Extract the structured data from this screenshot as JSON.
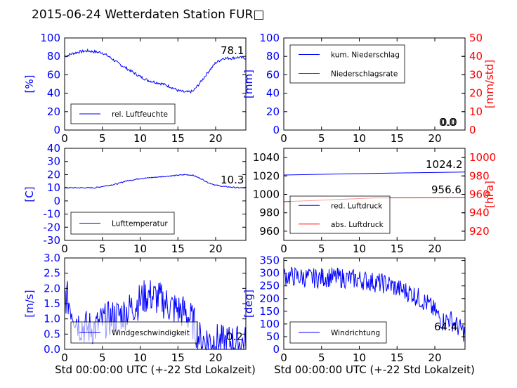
{
  "figure": {
    "title": "2015-06-24 Wetterdaten Station FUR□"
  },
  "colors": {
    "blue": "#0000ff",
    "red": "#ff0000",
    "light_blue": "#9999ff"
  },
  "chart_data": [
    {
      "id": "humidity",
      "type": "line",
      "xlim": [
        0,
        24
      ],
      "xticks": [
        0,
        5,
        10,
        15,
        20
      ],
      "ylim": [
        0,
        100
      ],
      "yticks": [
        0,
        20,
        40,
        60,
        80,
        100
      ],
      "ylabel": "[%]",
      "legend": {
        "placement": "lower-left",
        "entries": [
          {
            "label": "rel. Luftfeuchte",
            "color": "#0000ff"
          }
        ]
      },
      "annotations": [
        "78.1"
      ],
      "series": [
        {
          "name": "rel. Luftfeuchte",
          "axis": "left",
          "color": "#0000ff",
          "noise": 1.5,
          "points": [
            [
              0,
              80
            ],
            [
              1,
              83
            ],
            [
              2,
              85
            ],
            [
              3,
              86
            ],
            [
              4,
              85
            ],
            [
              5,
              84
            ],
            [
              6,
              79
            ],
            [
              7,
              73
            ],
            [
              8,
              68
            ],
            [
              9,
              63
            ],
            [
              10,
              58
            ],
            [
              11,
              54
            ],
            [
              12,
              52
            ],
            [
              13,
              50
            ],
            [
              14,
              47
            ],
            [
              15,
              43
            ],
            [
              16,
              41
            ],
            [
              17,
              42
            ],
            [
              18,
              52
            ],
            [
              19,
              63
            ],
            [
              20,
              73
            ],
            [
              21,
              78
            ],
            [
              22,
              78
            ],
            [
              23,
              79
            ],
            [
              24,
              78
            ]
          ]
        }
      ]
    },
    {
      "id": "precip",
      "type": "line",
      "xlim": [
        0,
        24
      ],
      "xticks": [
        0,
        5,
        10,
        15,
        20
      ],
      "ylim": [
        0,
        100
      ],
      "yticks": [
        0,
        20,
        40,
        60,
        80,
        100
      ],
      "ylabel": "[mm]",
      "ylim2": [
        0,
        50
      ],
      "yticks2": [
        0,
        10,
        20,
        30,
        40,
        50
      ],
      "ylabel2": "[mm/std]",
      "legend": {
        "placement": "upper-left",
        "entries": [
          {
            "label": "kum. Niederschlag",
            "color": "#0000ff"
          },
          {
            "label": "Niederschlagsrate",
            "color": "#ff0000"
          }
        ]
      },
      "annotations": [
        "0.0",
        "0.0"
      ],
      "series": [
        {
          "name": "kum. Niederschlag",
          "axis": "left",
          "color": "#0000ff",
          "noise": 0,
          "points": [
            [
              0,
              0
            ],
            [
              24,
              0
            ]
          ]
        },
        {
          "name": "Niederschlagsrate",
          "axis": "right",
          "color": "#ff0000",
          "noise": 0,
          "points": [
            [
              0,
              0
            ],
            [
              24,
              0
            ]
          ]
        }
      ]
    },
    {
      "id": "temp",
      "type": "line",
      "xlim": [
        0,
        24
      ],
      "xticks": [
        0,
        5,
        10,
        15,
        20
      ],
      "ylim": [
        -30,
        40
      ],
      "yticks": [
        -30,
        -20,
        -10,
        0,
        10,
        20,
        30,
        40
      ],
      "ylabel": "[C]",
      "legend": {
        "placement": "lower-left",
        "entries": [
          {
            "label": "Lufttemperatur",
            "color": "#0000ff"
          }
        ]
      },
      "annotations": [
        "10.3"
      ],
      "series": [
        {
          "name": "Lufttemperatur",
          "axis": "left",
          "color": "#0000ff",
          "noise": 0.4,
          "points": [
            [
              0,
              10
            ],
            [
              1,
              10
            ],
            [
              2,
              10
            ],
            [
              3,
              10
            ],
            [
              4,
              10
            ],
            [
              5,
              11
            ],
            [
              6,
              12
            ],
            [
              7,
              13
            ],
            [
              8,
              15
            ],
            [
              9,
              16
            ],
            [
              10,
              17
            ],
            [
              11,
              17.5
            ],
            [
              12,
              18
            ],
            [
              13,
              18.5
            ],
            [
              14,
              19
            ],
            [
              15,
              19.5
            ],
            [
              16,
              20
            ],
            [
              17,
              19.5
            ],
            [
              18,
              17
            ],
            [
              19,
              14
            ],
            [
              20,
              12
            ],
            [
              21,
              11
            ],
            [
              22,
              10.5
            ],
            [
              23,
              10
            ],
            [
              24,
              10
            ]
          ]
        }
      ]
    },
    {
      "id": "pressure",
      "type": "line",
      "xlim": [
        0,
        24
      ],
      "xticks": [
        0,
        5,
        10,
        15,
        20
      ],
      "ylim": [
        950,
        1050
      ],
      "yticks": [
        960,
        980,
        1000,
        1020,
        1040
      ],
      "ylabel2": "[hPa]",
      "ylim2": [
        910,
        1010
      ],
      "yticks2": [
        920,
        940,
        960,
        980,
        1000
      ],
      "legend": {
        "placement": "lower-left",
        "entries": [
          {
            "label": "red. Luftdruck",
            "color": "#0000ff"
          },
          {
            "label": "abs. Luftdruck",
            "color": "#ff0000"
          }
        ]
      },
      "annotations": [
        "1024.2",
        "956.6"
      ],
      "series": [
        {
          "name": "red. Luftdruck",
          "axis": "left",
          "color": "#0000ff",
          "noise": 0,
          "points": [
            [
              0,
              1021
            ],
            [
              5,
              1022
            ],
            [
              10,
              1023
            ],
            [
              15,
              1022.5
            ],
            [
              20,
              1023.5
            ],
            [
              24,
              1024.2
            ]
          ]
        },
        {
          "name": "abs. Luftdruck",
          "axis": "right",
          "color": "#ff0000",
          "noise": 0,
          "points": [
            [
              0,
              952
            ],
            [
              5,
              954.5
            ],
            [
              10,
              956
            ],
            [
              15,
              956.2
            ],
            [
              20,
              956.5
            ],
            [
              24,
              956.6
            ]
          ]
        }
      ]
    },
    {
      "id": "wind",
      "type": "line",
      "xlim": [
        0,
        24
      ],
      "xticks": [
        0,
        5,
        10,
        15,
        20
      ],
      "xlabel": "Std 00:00:00 UTC (+-22 Std Lokalzeit)",
      "ylim": [
        0,
        3
      ],
      "yticks": [
        0.0,
        0.5,
        1.0,
        1.5,
        2.0,
        2.5,
        3.0
      ],
      "ylabel": "[m/s]",
      "legend": {
        "placement": "lower-left",
        "entries": [
          {
            "label": "Windgeschwindigkeit",
            "color": "#0000ff"
          }
        ]
      },
      "annotations": [
        "0.2"
      ],
      "series": [
        {
          "name": "Windgeschwindigkeit",
          "axis": "left",
          "color": "#0000ff",
          "noise": 0.6,
          "points": [
            [
              0,
              1.8
            ],
            [
              0.5,
              1.6
            ],
            [
              1,
              1.3
            ],
            [
              2,
              0.8
            ],
            [
              3,
              0.7
            ],
            [
              4,
              0.7
            ],
            [
              5,
              0.9
            ],
            [
              6,
              1.0
            ],
            [
              7,
              1.1
            ],
            [
              8,
              1.2
            ],
            [
              9,
              1.4
            ],
            [
              10,
              1.6
            ],
            [
              11,
              1.8
            ],
            [
              12,
              1.7
            ],
            [
              13,
              1.6
            ],
            [
              14,
              1.4
            ],
            [
              15,
              1.3
            ],
            [
              16,
              1.2
            ],
            [
              17,
              0.9
            ],
            [
              18,
              0.3
            ],
            [
              19,
              0.3
            ],
            [
              20,
              0.3
            ],
            [
              21,
              0.2
            ],
            [
              22,
              0.25
            ],
            [
              23,
              0.2
            ],
            [
              24,
              0.2
            ]
          ]
        }
      ]
    },
    {
      "id": "wind_dir",
      "type": "line",
      "xlim": [
        0,
        24
      ],
      "xticks": [
        0,
        5,
        10,
        15,
        20
      ],
      "xlabel": "Std 00:00:00 UTC (+-22 Std Lokalzeit)",
      "ylim": [
        0,
        360
      ],
      "yticks": [
        0,
        50,
        100,
        150,
        200,
        250,
        300,
        350
      ],
      "ylabel": "[deg]",
      "legend": {
        "placement": "lower-left",
        "entries": [
          {
            "label": "Windrichtung",
            "color": "#0000ff"
          }
        ]
      },
      "annotations": [
        "64.4"
      ],
      "series": [
        {
          "name": "Windrichtung",
          "axis": "left",
          "color": "#0000ff",
          "noise": 40,
          "points": [
            [
              0,
              290
            ],
            [
              2,
              285
            ],
            [
              4,
              280
            ],
            [
              6,
              285
            ],
            [
              8,
              280
            ],
            [
              10,
              275
            ],
            [
              12,
              265
            ],
            [
              14,
              255
            ],
            [
              15,
              240
            ],
            [
              16,
              230
            ],
            [
              17,
              220
            ],
            [
              18,
              200
            ],
            [
              19,
              180
            ],
            [
              20,
              150
            ],
            [
              21,
              110
            ],
            [
              22,
              120
            ],
            [
              23,
              90
            ],
            [
              24,
              64
            ]
          ]
        }
      ]
    }
  ]
}
